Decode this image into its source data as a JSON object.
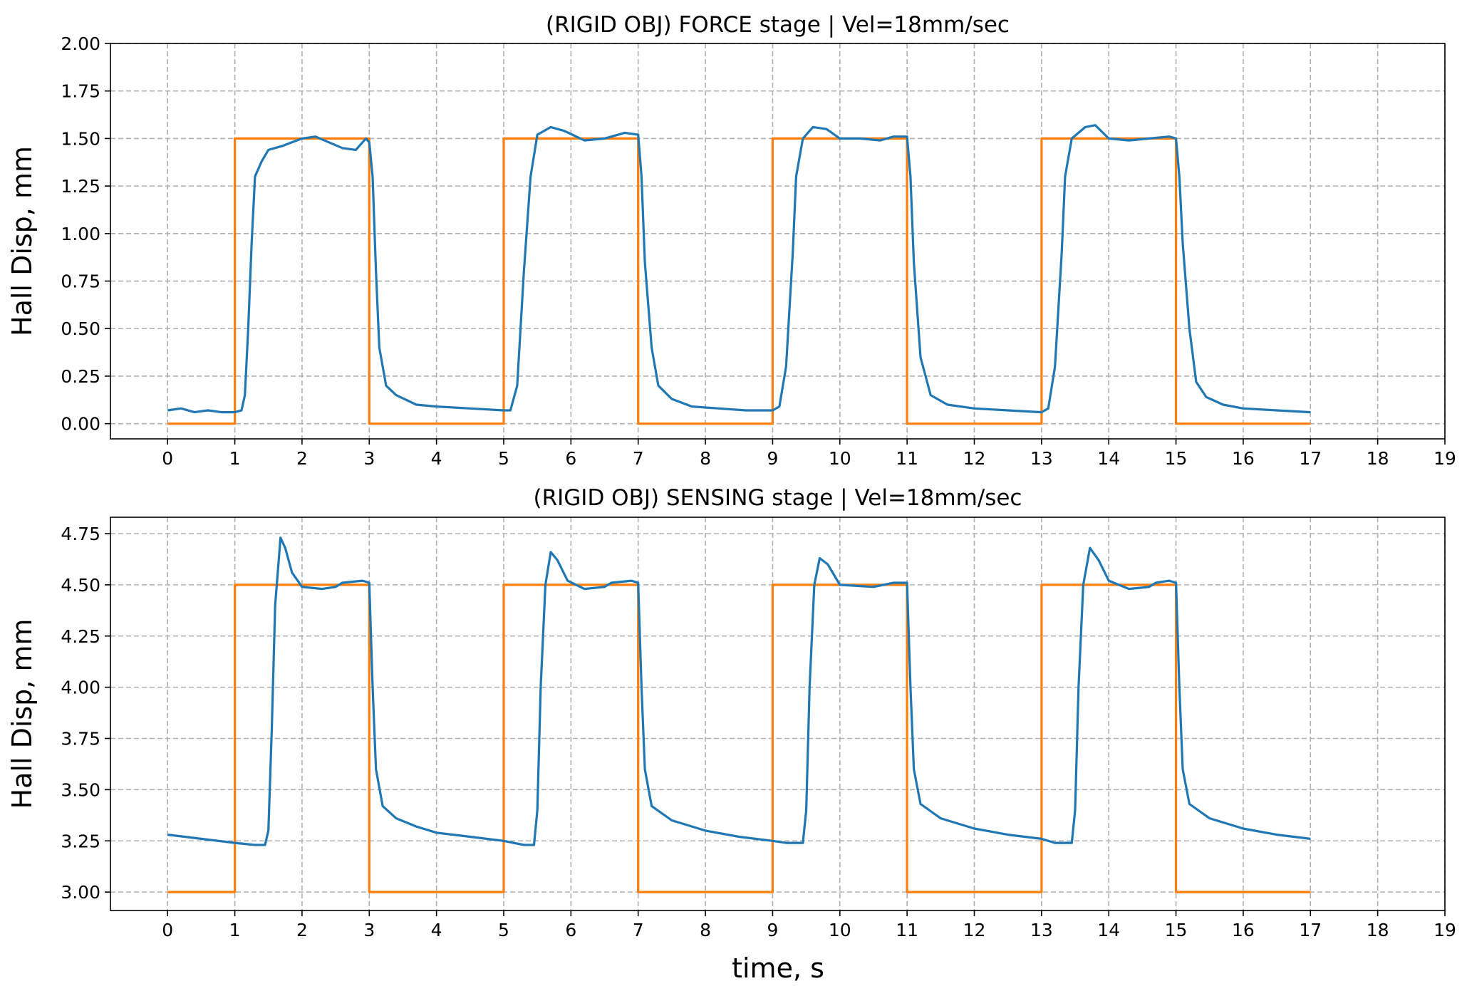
{
  "figure": {
    "xlabel": "time, s",
    "colors": {
      "measured": "#1f77b4",
      "command": "#ff7f0e",
      "grid": "#b0b0b0"
    }
  },
  "chart_data": [
    {
      "type": "line",
      "title": "(RIGID OBJ) FORCE stage | Vel=18mm/sec",
      "xlabel": "",
      "ylabel": "Hall Disp, mm",
      "xlim": [
        -0.85,
        19
      ],
      "ylim": [
        -0.08,
        2.0
      ],
      "xticks": [
        "0",
        "1",
        "2",
        "3",
        "4",
        "5",
        "6",
        "7",
        "8",
        "9",
        "10",
        "11",
        "12",
        "13",
        "14",
        "15",
        "16",
        "17",
        "18",
        "19"
      ],
      "yticks": [
        "0.00",
        "0.25",
        "0.50",
        "0.75",
        "1.00",
        "1.25",
        "1.50",
        "1.75",
        "2.00"
      ],
      "grid": true,
      "series": [
        {
          "color": "#ff7f0e",
          "points": [
            [
              0,
              0
            ],
            [
              1,
              0
            ],
            [
              1,
              1.5
            ],
            [
              3,
              1.5
            ],
            [
              3,
              0
            ],
            [
              5,
              0
            ],
            [
              5,
              1.5
            ],
            [
              7,
              1.5
            ],
            [
              7,
              0
            ],
            [
              9,
              0
            ],
            [
              9,
              1.5
            ],
            [
              11,
              1.5
            ],
            [
              11,
              0
            ],
            [
              13,
              0
            ],
            [
              13,
              1.5
            ],
            [
              15,
              1.5
            ],
            [
              15,
              0
            ],
            [
              17,
              0
            ]
          ]
        },
        {
          "color": "#1f77b4",
          "points": [
            [
              0,
              0.07
            ],
            [
              0.2,
              0.08
            ],
            [
              0.4,
              0.06
            ],
            [
              0.6,
              0.07
            ],
            [
              0.8,
              0.06
            ],
            [
              1.0,
              0.06
            ],
            [
              1.1,
              0.07
            ],
            [
              1.15,
              0.15
            ],
            [
              1.2,
              0.5
            ],
            [
              1.25,
              0.95
            ],
            [
              1.3,
              1.3
            ],
            [
              1.4,
              1.38
            ],
            [
              1.5,
              1.44
            ],
            [
              1.7,
              1.46
            ],
            [
              2.0,
              1.5
            ],
            [
              2.2,
              1.51
            ],
            [
              2.4,
              1.48
            ],
            [
              2.6,
              1.45
            ],
            [
              2.8,
              1.44
            ],
            [
              2.95,
              1.5
            ],
            [
              3.0,
              1.48
            ],
            [
              3.05,
              1.3
            ],
            [
              3.1,
              0.8
            ],
            [
              3.15,
              0.4
            ],
            [
              3.25,
              0.2
            ],
            [
              3.4,
              0.15
            ],
            [
              3.7,
              0.1
            ],
            [
              4.0,
              0.09
            ],
            [
              4.5,
              0.08
            ],
            [
              5.0,
              0.07
            ],
            [
              5.1,
              0.07
            ],
            [
              5.2,
              0.2
            ],
            [
              5.3,
              0.8
            ],
            [
              5.4,
              1.3
            ],
            [
              5.5,
              1.52
            ],
            [
              5.7,
              1.56
            ],
            [
              5.9,
              1.54
            ],
            [
              6.2,
              1.49
            ],
            [
              6.5,
              1.5
            ],
            [
              6.8,
              1.53
            ],
            [
              7.0,
              1.52
            ],
            [
              7.05,
              1.3
            ],
            [
              7.1,
              0.85
            ],
            [
              7.2,
              0.4
            ],
            [
              7.3,
              0.2
            ],
            [
              7.5,
              0.13
            ],
            [
              7.8,
              0.09
            ],
            [
              8.2,
              0.08
            ],
            [
              8.6,
              0.07
            ],
            [
              9.0,
              0.07
            ],
            [
              9.1,
              0.09
            ],
            [
              9.2,
              0.3
            ],
            [
              9.3,
              0.9
            ],
            [
              9.35,
              1.3
            ],
            [
              9.45,
              1.5
            ],
            [
              9.6,
              1.56
            ],
            [
              9.8,
              1.55
            ],
            [
              10.0,
              1.5
            ],
            [
              10.3,
              1.5
            ],
            [
              10.6,
              1.49
            ],
            [
              10.8,
              1.51
            ],
            [
              11.0,
              1.51
            ],
            [
              11.05,
              1.3
            ],
            [
              11.1,
              0.85
            ],
            [
              11.2,
              0.35
            ],
            [
              11.35,
              0.15
            ],
            [
              11.6,
              0.1
            ],
            [
              12.0,
              0.08
            ],
            [
              12.5,
              0.07
            ],
            [
              13.0,
              0.06
            ],
            [
              13.1,
              0.08
            ],
            [
              13.2,
              0.3
            ],
            [
              13.3,
              0.9
            ],
            [
              13.35,
              1.3
            ],
            [
              13.45,
              1.5
            ],
            [
              13.65,
              1.56
            ],
            [
              13.8,
              1.57
            ],
            [
              14.0,
              1.5
            ],
            [
              14.3,
              1.49
            ],
            [
              14.6,
              1.5
            ],
            [
              14.9,
              1.51
            ],
            [
              15.0,
              1.5
            ],
            [
              15.05,
              1.3
            ],
            [
              15.1,
              0.95
            ],
            [
              15.2,
              0.5
            ],
            [
              15.3,
              0.22
            ],
            [
              15.45,
              0.14
            ],
            [
              15.7,
              0.1
            ],
            [
              16.0,
              0.08
            ],
            [
              16.5,
              0.07
            ],
            [
              17.0,
              0.06
            ]
          ]
        }
      ]
    },
    {
      "type": "line",
      "title": "(RIGID OBJ) SENSING stage | Vel=18mm/sec",
      "xlabel": "time, s",
      "ylabel": "Hall Disp, mm",
      "xlim": [
        -0.85,
        19
      ],
      "ylim": [
        2.91,
        4.83
      ],
      "xticks": [
        "0",
        "1",
        "2",
        "3",
        "4",
        "5",
        "6",
        "7",
        "8",
        "9",
        "10",
        "11",
        "12",
        "13",
        "14",
        "15",
        "16",
        "17",
        "18",
        "19"
      ],
      "yticks": [
        "3.00",
        "3.25",
        "3.50",
        "3.75",
        "4.00",
        "4.25",
        "4.50",
        "4.75"
      ],
      "grid": true,
      "series": [
        {
          "color": "#ff7f0e",
          "points": [
            [
              0,
              3.0
            ],
            [
              1,
              3.0
            ],
            [
              1,
              4.5
            ],
            [
              3,
              4.5
            ],
            [
              3,
              3.0
            ],
            [
              5,
              3.0
            ],
            [
              5,
              4.5
            ],
            [
              7,
              4.5
            ],
            [
              7,
              3.0
            ],
            [
              9,
              3.0
            ],
            [
              9,
              4.5
            ],
            [
              11,
              4.5
            ],
            [
              11,
              3.0
            ],
            [
              13,
              3.0
            ],
            [
              13,
              4.5
            ],
            [
              15,
              4.5
            ],
            [
              15,
              3.0
            ],
            [
              17,
              3.0
            ]
          ]
        },
        {
          "color": "#1f77b4",
          "points": [
            [
              0,
              3.28
            ],
            [
              0.5,
              3.26
            ],
            [
              1.0,
              3.24
            ],
            [
              1.3,
              3.23
            ],
            [
              1.45,
              3.23
            ],
            [
              1.5,
              3.3
            ],
            [
              1.55,
              3.8
            ],
            [
              1.6,
              4.4
            ],
            [
              1.68,
              4.73
            ],
            [
              1.75,
              4.68
            ],
            [
              1.85,
              4.56
            ],
            [
              2.0,
              4.49
            ],
            [
              2.3,
              4.48
            ],
            [
              2.5,
              4.49
            ],
            [
              2.6,
              4.51
            ],
            [
              2.9,
              4.52
            ],
            [
              3.0,
              4.51
            ],
            [
              3.05,
              4.0
            ],
            [
              3.1,
              3.6
            ],
            [
              3.2,
              3.42
            ],
            [
              3.4,
              3.36
            ],
            [
              3.7,
              3.32
            ],
            [
              4.0,
              3.29
            ],
            [
              4.5,
              3.27
            ],
            [
              5.0,
              3.25
            ],
            [
              5.3,
              3.23
            ],
            [
              5.45,
              3.23
            ],
            [
              5.5,
              3.4
            ],
            [
              5.55,
              4.0
            ],
            [
              5.62,
              4.5
            ],
            [
              5.7,
              4.66
            ],
            [
              5.8,
              4.62
            ],
            [
              5.95,
              4.52
            ],
            [
              6.2,
              4.48
            ],
            [
              6.5,
              4.49
            ],
            [
              6.6,
              4.51
            ],
            [
              6.9,
              4.52
            ],
            [
              7.0,
              4.51
            ],
            [
              7.05,
              4.0
            ],
            [
              7.1,
              3.6
            ],
            [
              7.2,
              3.42
            ],
            [
              7.5,
              3.35
            ],
            [
              8.0,
              3.3
            ],
            [
              8.5,
              3.27
            ],
            [
              9.0,
              3.25
            ],
            [
              9.2,
              3.24
            ],
            [
              9.45,
              3.24
            ],
            [
              9.5,
              3.4
            ],
            [
              9.55,
              4.0
            ],
            [
              9.62,
              4.5
            ],
            [
              9.7,
              4.63
            ],
            [
              9.82,
              4.6
            ],
            [
              10.0,
              4.5
            ],
            [
              10.5,
              4.49
            ],
            [
              10.8,
              4.51
            ],
            [
              11.0,
              4.51
            ],
            [
              11.05,
              4.0
            ],
            [
              11.1,
              3.6
            ],
            [
              11.2,
              3.43
            ],
            [
              11.5,
              3.36
            ],
            [
              12.0,
              3.31
            ],
            [
              12.5,
              3.28
            ],
            [
              13.0,
              3.26
            ],
            [
              13.2,
              3.24
            ],
            [
              13.45,
              3.24
            ],
            [
              13.5,
              3.4
            ],
            [
              13.55,
              4.0
            ],
            [
              13.62,
              4.5
            ],
            [
              13.72,
              4.68
            ],
            [
              13.85,
              4.62
            ],
            [
              14.0,
              4.52
            ],
            [
              14.3,
              4.48
            ],
            [
              14.6,
              4.49
            ],
            [
              14.7,
              4.51
            ],
            [
              14.9,
              4.52
            ],
            [
              15.0,
              4.51
            ],
            [
              15.05,
              4.0
            ],
            [
              15.1,
              3.6
            ],
            [
              15.2,
              3.43
            ],
            [
              15.5,
              3.36
            ],
            [
              16.0,
              3.31
            ],
            [
              16.5,
              3.28
            ],
            [
              17.0,
              3.26
            ]
          ]
        }
      ]
    }
  ]
}
